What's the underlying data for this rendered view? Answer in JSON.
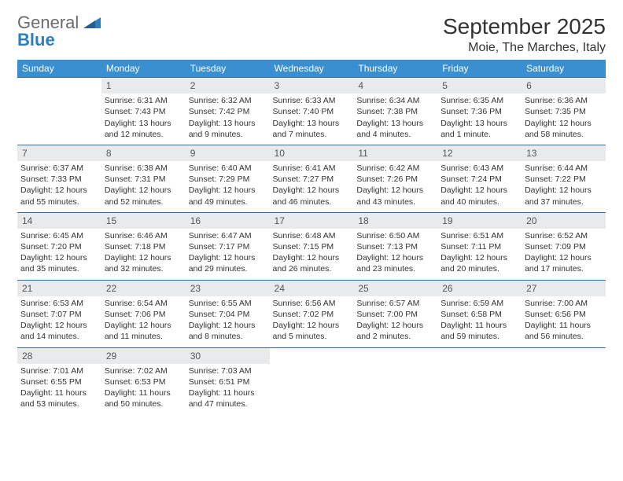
{
  "logo": {
    "part1": "General",
    "part2": "Blue"
  },
  "title": "September 2025",
  "location": "Moie, The Marches, Italy",
  "colors": {
    "header_bg": "#3a8fd0",
    "header_fg": "#ffffff",
    "daynum_bg": "#e9eaec",
    "daynum_border": "#3a6a95",
    "body_bg": "#ffffff",
    "text": "#333333"
  },
  "weekdays": [
    "Sunday",
    "Monday",
    "Tuesday",
    "Wednesday",
    "Thursday",
    "Friday",
    "Saturday"
  ],
  "weeks": [
    {
      "nums": [
        "",
        "1",
        "2",
        "3",
        "4",
        "5",
        "6"
      ],
      "cells": [
        [],
        [
          "Sunrise: 6:31 AM",
          "Sunset: 7:43 PM",
          "Daylight: 13 hours",
          "and 12 minutes."
        ],
        [
          "Sunrise: 6:32 AM",
          "Sunset: 7:42 PM",
          "Daylight: 13 hours",
          "and 9 minutes."
        ],
        [
          "Sunrise: 6:33 AM",
          "Sunset: 7:40 PM",
          "Daylight: 13 hours",
          "and 7 minutes."
        ],
        [
          "Sunrise: 6:34 AM",
          "Sunset: 7:38 PM",
          "Daylight: 13 hours",
          "and 4 minutes."
        ],
        [
          "Sunrise: 6:35 AM",
          "Sunset: 7:36 PM",
          "Daylight: 13 hours",
          "and 1 minute."
        ],
        [
          "Sunrise: 6:36 AM",
          "Sunset: 7:35 PM",
          "Daylight: 12 hours",
          "and 58 minutes."
        ]
      ]
    },
    {
      "nums": [
        "7",
        "8",
        "9",
        "10",
        "11",
        "12",
        "13"
      ],
      "cells": [
        [
          "Sunrise: 6:37 AM",
          "Sunset: 7:33 PM",
          "Daylight: 12 hours",
          "and 55 minutes."
        ],
        [
          "Sunrise: 6:38 AM",
          "Sunset: 7:31 PM",
          "Daylight: 12 hours",
          "and 52 minutes."
        ],
        [
          "Sunrise: 6:40 AM",
          "Sunset: 7:29 PM",
          "Daylight: 12 hours",
          "and 49 minutes."
        ],
        [
          "Sunrise: 6:41 AM",
          "Sunset: 7:27 PM",
          "Daylight: 12 hours",
          "and 46 minutes."
        ],
        [
          "Sunrise: 6:42 AM",
          "Sunset: 7:26 PM",
          "Daylight: 12 hours",
          "and 43 minutes."
        ],
        [
          "Sunrise: 6:43 AM",
          "Sunset: 7:24 PM",
          "Daylight: 12 hours",
          "and 40 minutes."
        ],
        [
          "Sunrise: 6:44 AM",
          "Sunset: 7:22 PM",
          "Daylight: 12 hours",
          "and 37 minutes."
        ]
      ]
    },
    {
      "nums": [
        "14",
        "15",
        "16",
        "17",
        "18",
        "19",
        "20"
      ],
      "cells": [
        [
          "Sunrise: 6:45 AM",
          "Sunset: 7:20 PM",
          "Daylight: 12 hours",
          "and 35 minutes."
        ],
        [
          "Sunrise: 6:46 AM",
          "Sunset: 7:18 PM",
          "Daylight: 12 hours",
          "and 32 minutes."
        ],
        [
          "Sunrise: 6:47 AM",
          "Sunset: 7:17 PM",
          "Daylight: 12 hours",
          "and 29 minutes."
        ],
        [
          "Sunrise: 6:48 AM",
          "Sunset: 7:15 PM",
          "Daylight: 12 hours",
          "and 26 minutes."
        ],
        [
          "Sunrise: 6:50 AM",
          "Sunset: 7:13 PM",
          "Daylight: 12 hours",
          "and 23 minutes."
        ],
        [
          "Sunrise: 6:51 AM",
          "Sunset: 7:11 PM",
          "Daylight: 12 hours",
          "and 20 minutes."
        ],
        [
          "Sunrise: 6:52 AM",
          "Sunset: 7:09 PM",
          "Daylight: 12 hours",
          "and 17 minutes."
        ]
      ]
    },
    {
      "nums": [
        "21",
        "22",
        "23",
        "24",
        "25",
        "26",
        "27"
      ],
      "cells": [
        [
          "Sunrise: 6:53 AM",
          "Sunset: 7:07 PM",
          "Daylight: 12 hours",
          "and 14 minutes."
        ],
        [
          "Sunrise: 6:54 AM",
          "Sunset: 7:06 PM",
          "Daylight: 12 hours",
          "and 11 minutes."
        ],
        [
          "Sunrise: 6:55 AM",
          "Sunset: 7:04 PM",
          "Daylight: 12 hours",
          "and 8 minutes."
        ],
        [
          "Sunrise: 6:56 AM",
          "Sunset: 7:02 PM",
          "Daylight: 12 hours",
          "and 5 minutes."
        ],
        [
          "Sunrise: 6:57 AM",
          "Sunset: 7:00 PM",
          "Daylight: 12 hours",
          "and 2 minutes."
        ],
        [
          "Sunrise: 6:59 AM",
          "Sunset: 6:58 PM",
          "Daylight: 11 hours",
          "and 59 minutes."
        ],
        [
          "Sunrise: 7:00 AM",
          "Sunset: 6:56 PM",
          "Daylight: 11 hours",
          "and 56 minutes."
        ]
      ]
    },
    {
      "nums": [
        "28",
        "29",
        "30",
        "",
        "",
        "",
        ""
      ],
      "cells": [
        [
          "Sunrise: 7:01 AM",
          "Sunset: 6:55 PM",
          "Daylight: 11 hours",
          "and 53 minutes."
        ],
        [
          "Sunrise: 7:02 AM",
          "Sunset: 6:53 PM",
          "Daylight: 11 hours",
          "and 50 minutes."
        ],
        [
          "Sunrise: 7:03 AM",
          "Sunset: 6:51 PM",
          "Daylight: 11 hours",
          "and 47 minutes."
        ],
        [],
        [],
        [],
        []
      ]
    }
  ]
}
